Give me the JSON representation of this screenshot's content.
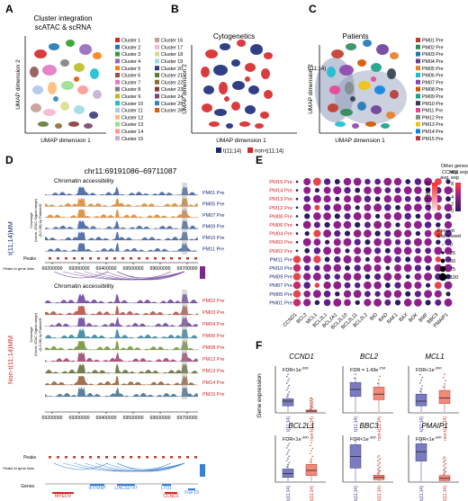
{
  "panels": {
    "A": {
      "letter": "A",
      "title": [
        "Cluster integration",
        "scATAC & scRNA"
      ],
      "xlabel": "UMAP dimension 1",
      "ylabel": "UMAP dimension 2",
      "legend": [
        "Cluster 1",
        "Cluster 2",
        "Cluster 3",
        "Cluster 4",
        "Cluster 5",
        "Cluster 6",
        "Cluster 7",
        "Cluster 8",
        "Cluster 9",
        "Cluster 10",
        "Cluster 11",
        "Cluster 12",
        "Cluster 13",
        "Cluster 14",
        "Cluster 15",
        "Cluster 16",
        "Cluster 17",
        "Cluster 18",
        "Cluster 19",
        "Cluster 20",
        "Cluster 21",
        "Cluster 22",
        "Cluster 23",
        "Cluster 24",
        "Cluster 25",
        "Cluster 26"
      ],
      "colors": [
        "#d62728",
        "#1f77b4",
        "#2ca02c",
        "#9467bd",
        "#ff7f0e",
        "#8c564b",
        "#e377c2",
        "#7f7f7f",
        "#bcbd22",
        "#17becf",
        "#aec7e8",
        "#ffbb78",
        "#98df8a",
        "#ff9896",
        "#c5b0d5",
        "#c49c94",
        "#f7b6d2",
        "#dbdb8d",
        "#9edae5",
        "#393b79",
        "#637939",
        "#8c6d31",
        "#843c39",
        "#7b4173",
        "#3182bd",
        "#e6550d"
      ]
    },
    "B": {
      "letter": "B",
      "title": "Cytogenetics",
      "xlabel": "UMAP dimension 1",
      "ylabel": "UMAP dimension 2",
      "legend": [
        "t(11;14)",
        "non-t(11;14)"
      ],
      "colors": [
        "#1a2a7a",
        "#d62728"
      ]
    },
    "C": {
      "letter": "C",
      "title": "Patients",
      "xlabel": "UMAP dimension 1",
      "ylabel": "UMAP dimension 2",
      "annotation": "t(11;14)",
      "legend": [
        "PM01 Pre",
        "PM02 Pre",
        "PM03 Pre",
        "PM04 Pre",
        "PM05 Pre",
        "PM06 Pre",
        "PM07 Pre",
        "PM08 Pre",
        "PM09 Pre",
        "PM10 Pre",
        "PM11 Pre",
        "PM12 Pre",
        "PM13 Pre",
        "PM14 Pre",
        "PM15 Pre"
      ],
      "colors": [
        "#c0392b",
        "#2e8b57",
        "#1f77b4",
        "#6a3d9a",
        "#e67e22",
        "#17becf",
        "#8e44ad",
        "#d35400",
        "#16a085",
        "#2c3e50",
        "#e84393",
        "#7f8c8d",
        "#f1c40f",
        "#0984e3",
        "#b33939"
      ]
    },
    "D": {
      "letter": "D",
      "region": "chr11:69191086–69711087",
      "track_title": "Chromatin accessibility",
      "group1": "t(11;14)MM",
      "group2": "Non-t(11;14)MM",
      "samples1": [
        "PM01 Pre",
        "PM05 Pre",
        "PM07 Pre",
        "PM09 Pre",
        "PM10 Pre",
        "PM11 Pre"
      ],
      "samples2": [
        "PM02 Pre",
        "PM03 Pre",
        "PM04 Pre",
        "PM06 Pre",
        "PM08 Pre",
        "PM12 Pre",
        "PM13 Pre",
        "PM14 Pre",
        "PM15 Pre"
      ],
      "coverage_label": [
        "Coverage",
        "(Norm. ATAC Signal range)",
        "(0-0.28) by PatientID"
      ],
      "xticks": [
        "69200000",
        "69300000",
        "69400000",
        "69500000",
        "69600000",
        "69700000"
      ],
      "peaks_label": "Peaks",
      "p2g_label": "Peaks to gene links",
      "genes_label": "Genes",
      "genes": [
        "MYEOV",
        "IFITM9P",
        "LINC02747",
        "LTO1",
        "CCND1",
        "FGF19"
      ]
    },
    "E": {
      "letter": "E",
      "rows": [
        "PM15 Pre",
        "PM14 Pre",
        "PM13 Pre",
        "PM12 Pre",
        "PM08 Pre",
        "PM06 Pre",
        "PM04 Pre",
        "PM03 Pre",
        "PM02 Pre",
        "PM11 Pre",
        "PM10 Pre",
        "PM09 Pre",
        "PM07 Pre",
        "PM05 Pre",
        "PM01 Pre"
      ],
      "row_colors": [
        "#d62728",
        "#d62728",
        "#d62728",
        "#d62728",
        "#d62728",
        "#d62728",
        "#d62728",
        "#d62728",
        "#d62728",
        "#1a2a7a",
        "#1a2a7a",
        "#1a2a7a",
        "#1a2a7a",
        "#1a2a7a",
        "#1a2a7a"
      ],
      "cols": [
        "CCND1",
        "BCL2",
        "MCL1",
        "BCL2L1",
        "BCL2A1",
        "BCL2L10",
        "BCL2L11",
        "BCL2L2",
        "BID",
        "BAD",
        "BAK1",
        "BAX",
        "BOK",
        "BMF",
        "BBC3",
        "PMAIP1"
      ],
      "legend1_title": [
        "CCND1",
        "avg. exp"
      ],
      "legend1_ticks": [
        "50",
        "40",
        "30",
        "20",
        "10",
        "0"
      ],
      "legend2_title": [
        "Other genes",
        "avg. exp"
      ],
      "legend2_ticks": [
        "8",
        "6",
        "4",
        "2",
        "0"
      ],
      "size_title": [
        "Percent",
        "Expressed"
      ],
      "size_ticks": [
        "0",
        "25",
        "50",
        "75",
        "100"
      ]
    },
    "F": {
      "letter": "F",
      "ylabel": "Gene expression",
      "plots": [
        {
          "gene": "CCND1",
          "fdr": "FDR<1e",
          "exp": "-300"
        },
        {
          "gene": "BCL2",
          "fdr": "FDR = 1.43e",
          "exp": "-154"
        },
        {
          "gene": "MCL1",
          "fdr": "FDR<1e",
          "exp": "-300"
        },
        {
          "gene": "BCL2L1",
          "fdr": "FDR<1e",
          "exp": "-300"
        },
        {
          "gene": "BBC3",
          "fdr": "FDR<1e",
          "exp": "-300"
        },
        {
          "gene": "PMAIP1",
          "fdr": "FDR<1e",
          "exp": "-300"
        }
      ],
      "xcats": [
        "t(11;14)",
        "non-t(11;14)"
      ]
    }
  }
}
